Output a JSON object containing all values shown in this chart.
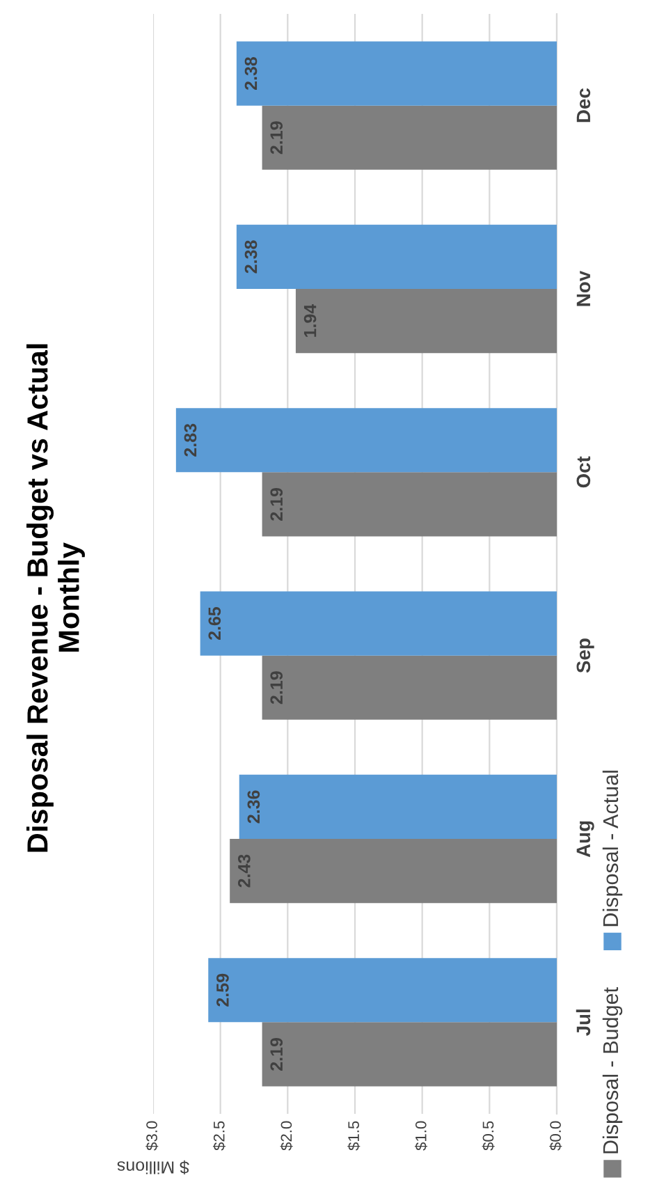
{
  "chart_data": {
    "type": "bar",
    "orientation": "horizontal",
    "title": "Disposal Revenue - Budget vs Actual Monthly",
    "xlabel": "$ Millions",
    "categories": [
      "Dec",
      "Nov",
      "Oct",
      "Sep",
      "Aug",
      "Jul"
    ],
    "series": [
      {
        "name": "Disposal - Budget",
        "color": "#7f7f7f",
        "values": [
          2.19,
          1.94,
          2.19,
          2.19,
          2.43,
          2.19
        ]
      },
      {
        "name": "Disposal - Actual",
        "color": "#5b9bd5",
        "values": [
          2.38,
          2.38,
          2.83,
          2.65,
          2.36,
          2.59
        ]
      }
    ],
    "xlim": [
      3.0,
      0.0
    ],
    "xticks": [
      {
        "value": 3.0,
        "label": "$3.0"
      },
      {
        "value": 2.5,
        "label": "$2.5"
      },
      {
        "value": 2.0,
        "label": "$2.0"
      },
      {
        "value": 1.5,
        "label": "$1.5"
      },
      {
        "value": 1.0,
        "label": "$1.0"
      },
      {
        "value": 0.5,
        "label": "$0.5"
      },
      {
        "value": 0.0,
        "label": "$0.0"
      }
    ],
    "grid": "x",
    "legend": "right",
    "data_labels": true
  }
}
